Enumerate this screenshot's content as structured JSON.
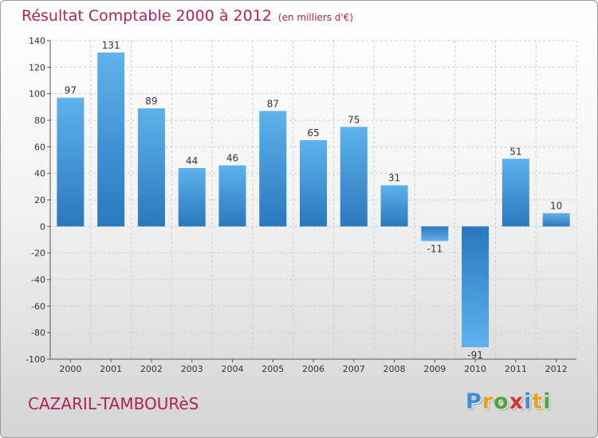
{
  "title": "Résultat Comptable 2000 à 2012",
  "subtitle": "(en milliers d'€)",
  "commune": "CAZARIL-TAMBOURèS",
  "logo": {
    "letters": [
      "P",
      "r",
      "o",
      "x",
      "i",
      "t",
      "i"
    ],
    "colors": [
      "#3a8fd6",
      "#e8a020",
      "#4aa83a",
      "#d6322e",
      "#3a8fd6",
      "#e8a020",
      "#4aa83a"
    ]
  },
  "colors": {
    "bar": "#4a9ee0",
    "bar_dark": "#2a7ac0",
    "title": "#b0205a",
    "grid": "#cccccc"
  },
  "chart_data": {
    "type": "bar",
    "categories": [
      "2000",
      "2001",
      "2002",
      "2003",
      "2004",
      "2005",
      "2006",
      "2007",
      "2008",
      "2009",
      "2010",
      "2011",
      "2012"
    ],
    "values": [
      97,
      131,
      89,
      44,
      46,
      87,
      65,
      75,
      31,
      -11,
      -91,
      51,
      10
    ],
    "value_labels": [
      "97",
      "131",
      "89",
      "44",
      "46",
      "87",
      "65",
      "75",
      "31",
      "-11",
      "-91",
      "51",
      "10"
    ],
    "ylim": [
      -100,
      140
    ],
    "yticks": [
      -100,
      -80,
      -60,
      -40,
      -20,
      0,
      20,
      40,
      60,
      80,
      100,
      120,
      140
    ],
    "ytick_labels": [
      "-100",
      "-80",
      "-60",
      "-40",
      "-20",
      "0",
      "20",
      "40",
      "60",
      "80",
      "100",
      "120",
      "140"
    ],
    "grid": true,
    "legend": false,
    "xlabel": "",
    "ylabel": ""
  }
}
